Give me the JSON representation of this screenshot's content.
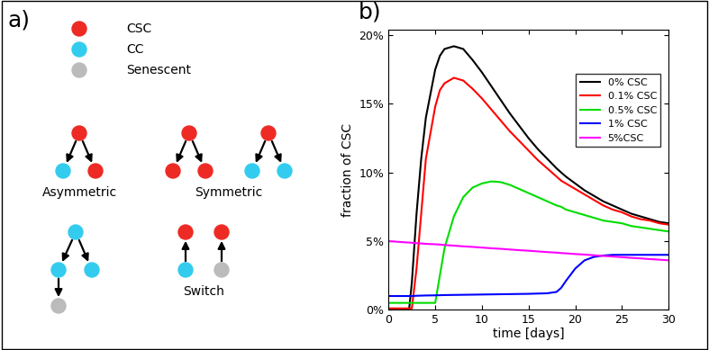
{
  "diagram": {
    "panel_label": "a)",
    "legend": [
      {
        "label": "CSC",
        "color": "#ee2a24"
      },
      {
        "label": "CC",
        "color": "#33ccee"
      },
      {
        "label": "Senescent",
        "color": "#bbbbbb"
      }
    ],
    "schemes": [
      "Asymmetric",
      "Symmetric",
      "Switch"
    ]
  },
  "chart_data": {
    "type": "line",
    "panel_label": "b)",
    "x_label": "time [days]",
    "y_label": "fraction of CSC",
    "xlim": [
      0,
      30
    ],
    "xticks": [
      0,
      5,
      10,
      15,
      20,
      25,
      30
    ],
    "ylim": [
      0,
      20.4
    ],
    "yticks": [
      {
        "value": 0,
        "label": "0%"
      },
      {
        "value": 5,
        "label": "5%"
      },
      {
        "value": 10,
        "label": "10%"
      },
      {
        "value": 15,
        "label": "15%"
      },
      {
        "value": 20,
        "label": "20%"
      }
    ],
    "grid": false,
    "legend": "upper right",
    "x": [
      0,
      1,
      2,
      2.2,
      2.5,
      3,
      3.5,
      4,
      5,
      5.5,
      6,
      7,
      8,
      9,
      10,
      11,
      12,
      13,
      14,
      15,
      16,
      17,
      18,
      18.5,
      19,
      20,
      21,
      22,
      23,
      24,
      25,
      26,
      27,
      28,
      29,
      30
    ],
    "series": [
      {
        "name": "0% CSC",
        "color": "#000000",
        "values": [
          0,
          0,
          0,
          0,
          2,
          7,
          11,
          14,
          17.5,
          18.5,
          19,
          19.2,
          19,
          18.2,
          17.3,
          16.3,
          15.3,
          14.3,
          13.4,
          12.5,
          11.7,
          11,
          10.3,
          10,
          9.7,
          9.2,
          8.7,
          8.3,
          7.9,
          7.6,
          7.3,
          7.0,
          6.8,
          6.6,
          6.4,
          6.3
        ]
      },
      {
        "name": "0.1% CSC",
        "color": "#ff0000",
        "values": [
          0.1,
          0.1,
          0.1,
          0.1,
          0.1,
          3,
          7,
          11,
          14.8,
          16,
          16.5,
          16.9,
          16.7,
          16.1,
          15.4,
          14.6,
          13.8,
          13.0,
          12.3,
          11.6,
          10.9,
          10.3,
          9.7,
          9.4,
          9.2,
          8.8,
          8.4,
          8.0,
          7.6,
          7.3,
          7.1,
          6.8,
          6.6,
          6.5,
          6.3,
          6.2
        ]
      },
      {
        "name": "0.5% CSC",
        "color": "#00dd00",
        "values": [
          0.5,
          0.5,
          0.5,
          0.5,
          0.5,
          0.5,
          0.5,
          0.5,
          0.5,
          2.5,
          4.5,
          6.8,
          8.2,
          8.9,
          9.2,
          9.35,
          9.3,
          9.1,
          8.8,
          8.5,
          8.2,
          7.9,
          7.6,
          7.5,
          7.3,
          7.1,
          6.9,
          6.7,
          6.5,
          6.4,
          6.3,
          6.1,
          6.0,
          5.9,
          5.8,
          5.7
        ]
      },
      {
        "name": "1% CSC",
        "color": "#0000ff",
        "values": [
          1.0,
          1.0,
          1.0,
          1.0,
          1.0,
          1.02,
          1.03,
          1.04,
          1.05,
          1.06,
          1.07,
          1.08,
          1.09,
          1.1,
          1.11,
          1.12,
          1.13,
          1.14,
          1.15,
          1.16,
          1.18,
          1.2,
          1.3,
          1.6,
          2.1,
          3.0,
          3.6,
          3.85,
          3.95,
          4.0,
          4.0,
          4.0,
          4.0,
          4.0,
          4.0,
          4.0
        ]
      },
      {
        "name": "5%CSC",
        "color": "#ff00ff",
        "values": [
          5.0,
          4.95,
          4.9,
          4.9,
          4.88,
          4.85,
          4.83,
          4.8,
          4.77,
          4.75,
          4.72,
          4.67,
          4.62,
          4.58,
          4.53,
          4.48,
          4.44,
          4.39,
          4.34,
          4.3,
          4.25,
          4.2,
          4.16,
          4.13,
          4.11,
          4.06,
          4.02,
          3.97,
          3.92,
          3.88,
          3.83,
          3.78,
          3.74,
          3.69,
          3.65,
          3.6
        ]
      }
    ]
  }
}
